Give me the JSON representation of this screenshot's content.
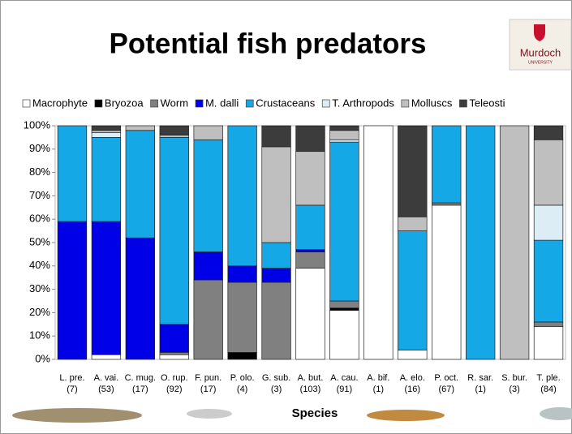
{
  "chart_data": {
    "type": "stacked_bar",
    "title": "Potential fish predators",
    "x_label": "Species",
    "categories": [
      "L. pre.",
      "A. vai.",
      "C. mug.",
      "O. rup.",
      "F. pun.",
      "P. olo.",
      "G. sub.",
      "A. but.",
      "A. cau.",
      "A. bif.",
      "A. elo.",
      "P. oct.",
      "R. sar.",
      "S. bur.",
      "T. ple."
    ],
    "category_counts": [
      "(7)",
      "(53)",
      "(17)",
      "(92)",
      "(17)",
      "(4)",
      "(3)",
      "(103)",
      "(91)",
      "(1)",
      "(16)",
      "(67)",
      "(1)",
      "(3)",
      "(84)"
    ],
    "ylim": [
      0,
      100
    ],
    "yticks": [
      {
        "value": 0,
        "label": "0%"
      },
      {
        "value": 10,
        "label": "10%"
      },
      {
        "value": 20,
        "label": "20%"
      },
      {
        "value": 30,
        "label": "30%"
      },
      {
        "value": 40,
        "label": "40%"
      },
      {
        "value": 50,
        "label": "50%"
      },
      {
        "value": 60,
        "label": "60%"
      },
      {
        "value": 70,
        "label": "70%"
      },
      {
        "value": 80,
        "label": "80%"
      },
      {
        "value": 90,
        "label": "90%"
      },
      {
        "value": 100,
        "label": "100%"
      }
    ],
    "grid": false,
    "legend": "top",
    "series": [
      {
        "name": "Macrophyte",
        "color": "#ffffff",
        "values": [
          0,
          2,
          0,
          2,
          0,
          0,
          0,
          39,
          21,
          100,
          4,
          66,
          0,
          0,
          14
        ]
      },
      {
        "name": "Bryozoa",
        "color": "#000000",
        "values": [
          0,
          0,
          0,
          0,
          0,
          3,
          0,
          0,
          1,
          0,
          0,
          0,
          0,
          0,
          0
        ]
      },
      {
        "name": "Worm",
        "color": "#808080",
        "values": [
          0,
          0,
          0,
          1,
          34,
          30,
          33,
          7,
          3,
          0,
          0,
          1,
          0,
          0,
          2
        ]
      },
      {
        "name": "M. dalli",
        "color": "#0000e6",
        "values": [
          59,
          57,
          52,
          12,
          12,
          7,
          6,
          1,
          0,
          0,
          0,
          0,
          0,
          0,
          0
        ]
      },
      {
        "name": "Crustaceans",
        "color": "#14a8e6",
        "values": [
          41,
          36,
          46,
          80,
          48,
          60,
          11,
          19,
          68,
          0,
          51,
          33,
          100,
          0,
          35
        ]
      },
      {
        "name": "T. Arthropods",
        "color": "#dcedf5",
        "values": [
          0,
          2,
          0,
          0,
          0,
          0,
          0,
          0,
          1,
          0,
          0,
          0,
          0,
          0,
          15
        ]
      },
      {
        "name": "Molluscs",
        "color": "#bfbfbf",
        "values": [
          0,
          1,
          2,
          1,
          6,
          0,
          41,
          23,
          4,
          0,
          6,
          0,
          0,
          100,
          28
        ]
      },
      {
        "name": "Teleosti",
        "color": "#3c3c3c",
        "values": [
          0,
          2,
          0,
          4,
          0,
          0,
          9,
          11,
          2,
          0,
          39,
          0,
          0,
          0,
          6
        ]
      }
    ]
  },
  "logo": {
    "text": "Murdoch",
    "subtext": "UNIVERSITY"
  }
}
